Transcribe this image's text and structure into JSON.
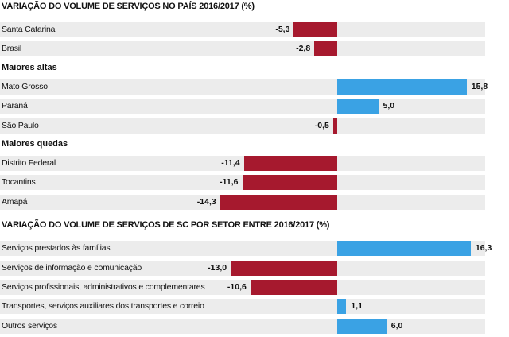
{
  "colors": {
    "negative": "#a6192e",
    "positive": "#3aa2e4",
    "band": "#ececec"
  },
  "chart_data": [
    {
      "type": "bar",
      "title": "VARIAÇÃO DO VOLUME DE SERVIÇOS NO PAÍS 2016/2017 (%)",
      "groups": [
        {
          "heading": "",
          "items": [
            {
              "label": "Santa Catarina",
              "value": -5.3,
              "value_label": "-5,3"
            },
            {
              "label": "Brasil",
              "value": -2.8,
              "value_label": "-2,8"
            }
          ]
        },
        {
          "heading": "Maiores altas",
          "items": [
            {
              "label": "Mato Grosso",
              "value": 15.8,
              "value_label": "15,8"
            },
            {
              "label": "Paraná",
              "value": 5.0,
              "value_label": "5,0"
            },
            {
              "label": "São Paulo",
              "value": -0.5,
              "value_label": "-0,5"
            }
          ]
        },
        {
          "heading": "Maiores quedas",
          "items": [
            {
              "label": "Distrito Federal",
              "value": -11.4,
              "value_label": "-11,4"
            },
            {
              "label": "Tocantins",
              "value": -11.6,
              "value_label": "-11,6"
            },
            {
              "label": "Amapá",
              "value": -14.3,
              "value_label": "-14,3"
            }
          ]
        }
      ]
    },
    {
      "type": "bar",
      "title": "VARIAÇÃO DO VOLUME DE SERVIÇOS DE SC POR SETOR ENTRE 2016/2017 (%)",
      "groups": [
        {
          "heading": "",
          "items": [
            {
              "label": "Serviços prestados às famílias",
              "value": 16.3,
              "value_label": "16,3"
            },
            {
              "label": "Serviços de informação e comunicação",
              "value": -13.0,
              "value_label": "-13,0"
            },
            {
              "label": "Serviços profissionais, administrativos e complementares",
              "value": -10.6,
              "value_label": "-10,6"
            },
            {
              "label": "Transportes, serviços auxiliares dos transportes e correio",
              "value": 1.1,
              "value_label": "1,1"
            },
            {
              "label": "Outros serviços",
              "value": 6.0,
              "value_label": "6,0"
            }
          ]
        }
      ]
    }
  ]
}
